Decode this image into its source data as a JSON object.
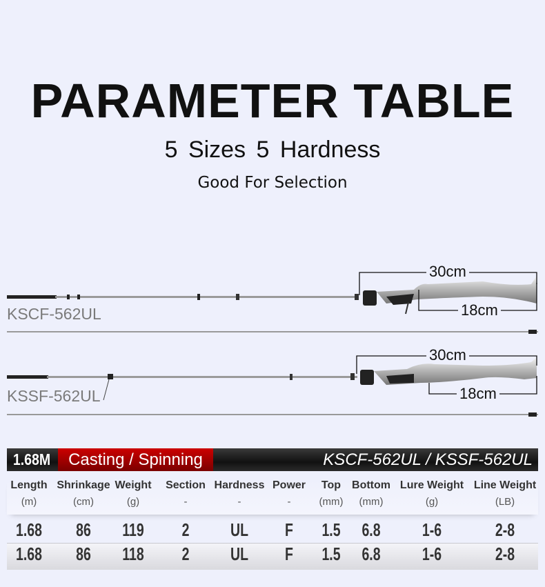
{
  "header": {
    "title": "PARAMETER TABLE",
    "subtitle": "5 Sizes  5 Hardness",
    "tagline": "Good For Selection"
  },
  "rods": [
    {
      "model": "KSCF-562UL",
      "handle_length": "30cm",
      "grip_length": "18cm",
      "type": "casting"
    },
    {
      "model": "KSSF-562UL",
      "handle_length": "30cm",
      "grip_length": "18cm",
      "type": "spinning"
    }
  ],
  "table": {
    "size": "1.68M",
    "type": "Casting / Spinning",
    "models": "KSCF-562UL /  KSSF-562UL",
    "accent_color": "#b00000",
    "columns": [
      {
        "name": "Length",
        "unit": "(m)"
      },
      {
        "name": "Shrinkage",
        "unit": "(cm)"
      },
      {
        "name": "Weight",
        "unit": "(g)"
      },
      {
        "name": "Section",
        "unit": "-"
      },
      {
        "name": "Hardness",
        "unit": "-"
      },
      {
        "name": "Power",
        "unit": "-"
      },
      {
        "name": "Top",
        "unit": "(mm)"
      },
      {
        "name": "Bottom",
        "unit": "(mm)"
      },
      {
        "name": "Lure Weight",
        "unit": "(g)"
      },
      {
        "name": "Line Weight",
        "unit": "(LB)"
      }
    ],
    "rows": [
      [
        "1.68",
        "86",
        "119",
        "2",
        "UL",
        "F",
        "1.5",
        "6.8",
        "1-6",
        "2-8"
      ],
      [
        "1.68",
        "86",
        "118",
        "2",
        "UL",
        "F",
        "1.5",
        "6.8",
        "1-6",
        "2-8"
      ]
    ]
  }
}
